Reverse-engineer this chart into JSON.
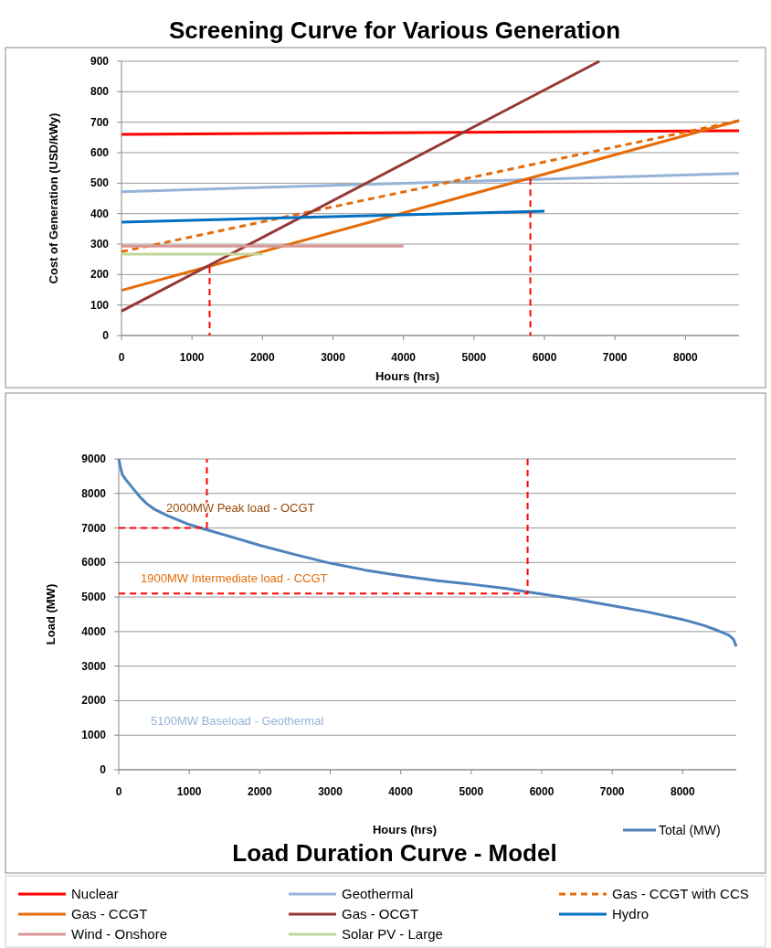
{
  "chart_data": [
    {
      "type": "line",
      "title": "Screening Curve for Various Generation",
      "xlabel": "Hours (hrs)",
      "ylabel": "Cost of Generation (USD/kWy)",
      "xlim": [
        0,
        8760
      ],
      "xticks": [
        0,
        1000,
        2000,
        3000,
        4000,
        5000,
        6000,
        7000,
        8000
      ],
      "ylim": [
        0,
        900
      ],
      "yticks": [
        0,
        100,
        200,
        300,
        400,
        500,
        600,
        700,
        800,
        900
      ],
      "grid": "y",
      "legend": "bottom",
      "series": [
        {
          "name": "Nuclear",
          "color": "#ff0000",
          "x": [
            0,
            8760
          ],
          "values": [
            660,
            672
          ]
        },
        {
          "name": "Geothermal",
          "color": "#95b3d7",
          "x": [
            0,
            8760
          ],
          "values": [
            472,
            532
          ]
        },
        {
          "name": "Gas - CCGT with CCS",
          "color": "#e46c0a",
          "line_style": "dashed",
          "x": [
            0,
            8760
          ],
          "values": [
            275,
            705
          ]
        },
        {
          "name": "Gas - CCGT",
          "color": "#e46c0a",
          "x": [
            0,
            8760
          ],
          "values": [
            148,
            705
          ]
        },
        {
          "name": "Gas - OCGT",
          "color": "#953735",
          "x": [
            0,
            6780
          ],
          "values": [
            80,
            900
          ]
        },
        {
          "name": "Hydro",
          "color": "#0070c0",
          "x": [
            0,
            6000
          ],
          "values": [
            372,
            408
          ]
        },
        {
          "name": "Wind - Onshore",
          "color": "#d99694",
          "x": [
            0,
            4000
          ],
          "values": [
            293,
            293
          ]
        },
        {
          "name": "Solar PV - Large",
          "color": "#c3d69b",
          "x": [
            0,
            2000
          ],
          "values": [
            267,
            267
          ]
        },
        {
          "color": "#ff0000",
          "line_style": "dashed",
          "x": [
            1250,
            1250
          ],
          "values": [
            225,
            0
          ]
        },
        {
          "color": "#ff0000",
          "line_style": "dashed",
          "x": [
            5800,
            5800
          ],
          "values": [
            515,
            0
          ]
        }
      ]
    },
    {
      "type": "line",
      "title": "Load Duration Curve - Model",
      "xlabel": "Hours (hrs)",
      "ylabel": "Load (MW)",
      "xlim": [
        0,
        8760
      ],
      "xticks": [
        0,
        1000,
        2000,
        3000,
        4000,
        5000,
        6000,
        7000,
        8000
      ],
      "ylim": [
        0,
        9000
      ],
      "yticks": [
        0,
        1000,
        2000,
        3000,
        4000,
        5000,
        6000,
        7000,
        8000,
        9000
      ],
      "grid": "y",
      "legend": "bottom right",
      "series": [
        {
          "name": "Total (MW)",
          "color": "#4f81bd",
          "x": [
            0,
            20,
            50,
            100,
            200,
            300,
            400,
            500,
            700,
            1000,
            1250,
            1500,
            2000,
            2500,
            3000,
            3500,
            4000,
            4500,
            5000,
            5500,
            5800,
            6000,
            6500,
            7000,
            7500,
            8000,
            8300,
            8500,
            8650,
            8720,
            8760
          ],
          "values": [
            9000,
            8800,
            8550,
            8400,
            8150,
            7900,
            7700,
            7550,
            7350,
            7100,
            6950,
            6800,
            6500,
            6230,
            5980,
            5780,
            5620,
            5480,
            5370,
            5250,
            5150,
            5090,
            4930,
            4750,
            4570,
            4350,
            4180,
            4030,
            3900,
            3780,
            3570
          ]
        },
        {
          "color": "#ff0000",
          "line_style": "dashed",
          "x": [
            0,
            1250,
            1250
          ],
          "values": [
            7000,
            7000,
            9000
          ]
        },
        {
          "color": "#ff0000",
          "line_style": "dashed",
          "x": [
            0,
            5800,
            5800
          ],
          "values": [
            5100,
            5100,
            9000
          ]
        }
      ],
      "annotations": [
        "2000MW  Peak load - OCGT",
        "1900MW  Intermediate load - CCGT",
        "5100MW  Baseload - Geothermal"
      ]
    }
  ]
}
